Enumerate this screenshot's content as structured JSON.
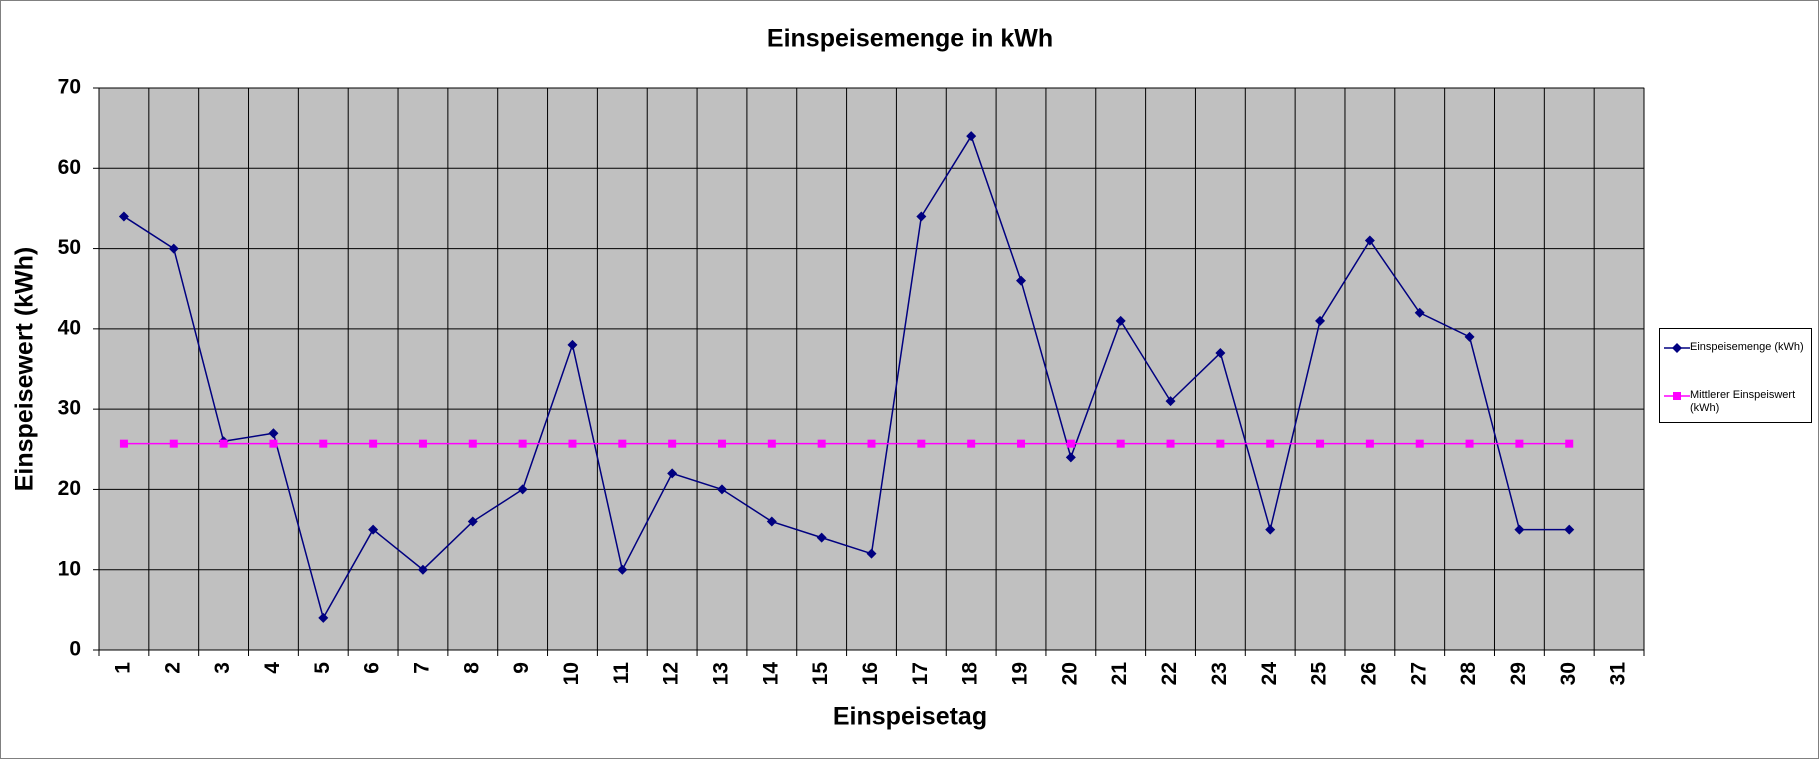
{
  "chart_data": {
    "type": "line",
    "title": "Einspeisemenge in kWh",
    "x_label": "Einspeisetag",
    "y_label": "Einspeisewert  (kWh)",
    "categories": [
      "1",
      "2",
      "3",
      "4",
      "5",
      "6",
      "7",
      "8",
      "9",
      "10",
      "11",
      "12",
      "13",
      "14",
      "15",
      "16",
      "17",
      "18",
      "19",
      "20",
      "21",
      "22",
      "23",
      "24",
      "25",
      "26",
      "27",
      "28",
      "29",
      "30",
      "31"
    ],
    "series": [
      {
        "name": "Einspeisemenge (kWh)",
        "color": "#000080",
        "marker": "diamond",
        "values": [
          54,
          50,
          26,
          27,
          4,
          15,
          10,
          16,
          20,
          38,
          10,
          22,
          20,
          16,
          14,
          12,
          54,
          64,
          46,
          24,
          41,
          31,
          37,
          15,
          41,
          51,
          42,
          39,
          15,
          15,
          null
        ]
      },
      {
        "name": "Mittlerer Einspeiswert (kWh)",
        "color": "#ff00ff",
        "marker": "square",
        "values": [
          25.7,
          25.7,
          25.7,
          25.7,
          25.7,
          25.7,
          25.7,
          25.7,
          25.7,
          25.7,
          25.7,
          25.7,
          25.7,
          25.7,
          25.7,
          25.7,
          25.7,
          25.7,
          25.7,
          25.7,
          25.7,
          25.7,
          25.7,
          25.7,
          25.7,
          25.7,
          25.7,
          25.7,
          25.7,
          25.7,
          null
        ]
      }
    ],
    "ylim": [
      0,
      70
    ],
    "yticks": [
      0,
      10,
      20,
      30,
      40,
      50,
      60,
      70
    ],
    "grid": true,
    "plot_background": "#c0c0c0",
    "legend": "right"
  }
}
